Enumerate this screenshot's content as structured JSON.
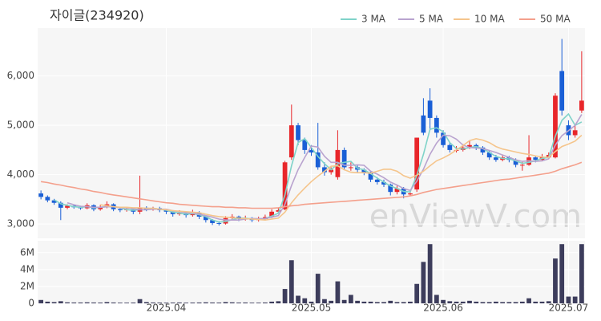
{
  "chart_data": [
    {
      "type": "candlestick",
      "title": "자이글(234920)",
      "watermark": "enViewV.com",
      "up_color": "#e8262a",
      "down_color": "#1a5fd6",
      "open": [
        3620,
        3550,
        3480,
        3430,
        3330,
        3370,
        3340,
        3320,
        3380,
        3300,
        3350,
        3400,
        3300,
        3280,
        3300,
        3250,
        3330,
        3300,
        3320,
        3280,
        3250,
        3200,
        3220,
        3180,
        3230,
        3150,
        3080,
        3020,
        3010,
        3120,
        3150,
        3100,
        3120,
        3080,
        3100,
        3140,
        3250,
        3300,
        4350,
        5000,
        4700,
        4500,
        4450,
        4150,
        4050,
        3950,
        4500,
        4150,
        4150,
        4100,
        4050,
        3900,
        3850,
        3800,
        3650,
        3720,
        3600,
        3700,
        5200,
        5500,
        5150,
        4850,
        4600,
        4500,
        4500,
        4550,
        4600,
        4550,
        4450,
        4350,
        4300,
        4350,
        4300,
        4200,
        4200,
        4350,
        4300,
        4350,
        4350,
        6100,
        5000,
        4800,
        5300
      ],
      "high": [
        3680,
        3580,
        3510,
        3460,
        3400,
        3400,
        3370,
        3420,
        3400,
        3390,
        3460,
        3420,
        3330,
        3340,
        3320,
        3980,
        3360,
        3350,
        3350,
        3300,
        3270,
        3280,
        3250,
        3290,
        3260,
        3170,
        3100,
        3060,
        3160,
        3200,
        3170,
        3170,
        3140,
        3150,
        3190,
        3300,
        3330,
        4280,
        5420,
        5050,
        4750,
        4600,
        5050,
        4250,
        4150,
        4900,
        4550,
        4250,
        4200,
        4130,
        4080,
        3950,
        3900,
        3820,
        3780,
        3750,
        3680,
        4750,
        5550,
        5750,
        5200,
        4900,
        4650,
        4580,
        4620,
        4680,
        4630,
        4580,
        4480,
        4400,
        4400,
        4380,
        4330,
        4260,
        4800,
        4380,
        4420,
        4450,
        5650,
        6750,
        5100,
        5000,
        6500
      ],
      "low": [
        3500,
        3440,
        3390,
        3080,
        3300,
        3310,
        3290,
        3300,
        3260,
        3270,
        3320,
        3260,
        3240,
        3250,
        3200,
        3200,
        3260,
        3270,
        3240,
        3200,
        3150,
        3170,
        3130,
        3150,
        3100,
        3030,
        2980,
        2970,
        2990,
        3090,
        3060,
        3070,
        3040,
        3050,
        3070,
        3120,
        3210,
        3280,
        4300,
        4600,
        4420,
        4380,
        4100,
        3980,
        4000,
        3900,
        4100,
        4080,
        4050,
        3990,
        3850,
        3800,
        3750,
        3580,
        3600,
        3520,
        3570,
        3650,
        4800,
        4900,
        4750,
        4550,
        4450,
        4450,
        4470,
        4520,
        4500,
        4400,
        4300,
        4260,
        4270,
        4250,
        4150,
        4080,
        4180,
        4250,
        4270,
        4320,
        4330,
        5200,
        4700,
        4750,
        5250
      ],
      "close": [
        3550,
        3480,
        3430,
        3330,
        3370,
        3340,
        3320,
        3380,
        3300,
        3350,
        3400,
        3300,
        3280,
        3300,
        3250,
        3330,
        3300,
        3320,
        3280,
        3250,
        3200,
        3220,
        3180,
        3230,
        3150,
        3080,
        3020,
        3010,
        3120,
        3150,
        3100,
        3120,
        3080,
        3100,
        3140,
        3250,
        3280,
        4250,
        5000,
        4700,
        4500,
        4450,
        4150,
        4050,
        4100,
        4500,
        4150,
        4150,
        4100,
        4050,
        3900,
        3850,
        3800,
        3650,
        3720,
        3600,
        3620,
        4750,
        4850,
        5150,
        4850,
        4600,
        4500,
        4500,
        4550,
        4600,
        4550,
        4450,
        4350,
        4300,
        4350,
        4300,
        4200,
        4200,
        4350,
        4300,
        4350,
        4400,
        5600,
        5300,
        4800,
        4900,
        5500
      ],
      "series": [
        {
          "name": "3 MA",
          "color": "#7fd3c9",
          "values": [
            null,
            null,
            3490,
            3410,
            3380,
            3350,
            3340,
            3350,
            3330,
            3340,
            3350,
            3350,
            3330,
            3290,
            3280,
            3290,
            3290,
            3320,
            3300,
            3280,
            3240,
            3220,
            3200,
            3210,
            3190,
            3150,
            3080,
            3040,
            3050,
            3090,
            3120,
            3120,
            3100,
            3100,
            3110,
            3160,
            3220,
            3590,
            4180,
            4650,
            4730,
            4550,
            4370,
            4220,
            4100,
            4220,
            4250,
            4270,
            4130,
            4100,
            4020,
            3930,
            3850,
            3770,
            3720,
            3660,
            3650,
            3990,
            4410,
            4920,
            4950,
            4870,
            4650,
            4530,
            4520,
            4550,
            4570,
            4530,
            4450,
            4370,
            4330,
            4320,
            4280,
            4230,
            4250,
            4280,
            4330,
            4350,
            4780,
            5100,
            5230,
            5000,
            5070
          ]
        },
        {
          "name": "5 MA",
          "color": "#b9a3cf",
          "values": [
            null,
            null,
            null,
            null,
            3430,
            3390,
            3360,
            3350,
            3340,
            3340,
            3350,
            3350,
            3330,
            3330,
            3310,
            3290,
            3290,
            3300,
            3300,
            3300,
            3270,
            3250,
            3230,
            3220,
            3200,
            3170,
            3140,
            3100,
            3080,
            3080,
            3080,
            3100,
            3110,
            3110,
            3110,
            3140,
            3170,
            3400,
            3780,
            4100,
            4350,
            4580,
            4560,
            4370,
            4250,
            4250,
            4190,
            4190,
            4200,
            4190,
            4070,
            4010,
            3940,
            3850,
            3790,
            3720,
            3680,
            3870,
            4110,
            4410,
            4640,
            4800,
            4790,
            4720,
            4600,
            4550,
            4540,
            4530,
            4490,
            4450,
            4400,
            4350,
            4300,
            4270,
            4280,
            4270,
            4280,
            4320,
            4600,
            4790,
            4890,
            5000,
            5220
          ]
        },
        {
          "name": "10 MA",
          "color": "#f5c58c",
          "values": [
            null,
            null,
            null,
            null,
            null,
            null,
            null,
            null,
            null,
            3390,
            3370,
            3350,
            3340,
            3340,
            3330,
            3330,
            3320,
            3320,
            3300,
            3290,
            3270,
            3260,
            3250,
            3240,
            3230,
            3200,
            3170,
            3150,
            3140,
            3130,
            3120,
            3110,
            3100,
            3090,
            3080,
            3100,
            3120,
            3240,
            3430,
            3590,
            3730,
            3860,
            3970,
            4070,
            4170,
            4180,
            4100,
            4050,
            4040,
            4040,
            4030,
            4070,
            4110,
            4110,
            4070,
            3980,
            3930,
            3990,
            4070,
            4180,
            4280,
            4340,
            4410,
            4500,
            4590,
            4690,
            4730,
            4700,
            4650,
            4570,
            4520,
            4490,
            4460,
            4430,
            4410,
            4380,
            4360,
            4350,
            4470,
            4570,
            4620,
            4680,
            4800
          ]
        },
        {
          "name": "50 MA",
          "color": "#f4a08c",
          "values": [
            3860,
            3840,
            3810,
            3790,
            3760,
            3740,
            3710,
            3690,
            3660,
            3640,
            3610,
            3590,
            3570,
            3550,
            3530,
            3510,
            3490,
            3470,
            3450,
            3430,
            3420,
            3400,
            3390,
            3380,
            3370,
            3360,
            3350,
            3350,
            3340,
            3340,
            3330,
            3330,
            3320,
            3320,
            3320,
            3320,
            3330,
            3350,
            3370,
            3380,
            3400,
            3410,
            3420,
            3430,
            3440,
            3450,
            3460,
            3470,
            3480,
            3490,
            3500,
            3510,
            3520,
            3530,
            3540,
            3550,
            3570,
            3600,
            3640,
            3670,
            3700,
            3720,
            3740,
            3760,
            3780,
            3800,
            3820,
            3840,
            3860,
            3880,
            3900,
            3910,
            3930,
            3950,
            3970,
            3990,
            4010,
            4030,
            4070,
            4120,
            4160,
            4200,
            4250
          ]
        }
      ],
      "ylim": [
        2710,
        6970
      ],
      "yticks": [
        {
          "value": 3000,
          "label": "3,000"
        },
        {
          "value": 4000,
          "label": "4,000"
        },
        {
          "value": 5000,
          "label": "5,000"
        },
        {
          "value": 6000,
          "label": "6,000"
        }
      ],
      "grid": true
    },
    {
      "type": "bar",
      "color": "#3d3d5c",
      "categories": [
        null,
        null,
        null,
        null,
        null,
        null,
        null,
        null,
        null,
        null,
        null,
        null,
        null,
        null,
        null,
        null,
        null,
        null,
        null,
        "2025.04",
        null,
        null,
        null,
        null,
        null,
        null,
        null,
        null,
        null,
        null,
        null,
        null,
        null,
        null,
        null,
        null,
        null,
        null,
        null,
        null,
        null,
        "2025.05",
        null,
        null,
        null,
        null,
        null,
        null,
        null,
        null,
        null,
        null,
        null,
        null,
        null,
        null,
        null,
        null,
        null,
        null,
        null,
        "2025.06",
        null,
        null,
        null,
        null,
        null,
        null,
        null,
        null,
        null,
        null,
        null,
        null,
        null,
        null,
        null,
        null,
        null,
        null,
        "2025.07",
        null,
        null
      ],
      "values": [
        400000,
        200000,
        150000,
        250000,
        120000,
        100000,
        100000,
        120000,
        100000,
        90000,
        150000,
        100000,
        80000,
        80000,
        90000,
        500000,
        150000,
        100000,
        90000,
        80000,
        90000,
        100000,
        80000,
        90000,
        100000,
        120000,
        100000,
        90000,
        150000,
        120000,
        90000,
        100000,
        80000,
        80000,
        100000,
        200000,
        250000,
        1700000,
        5100000,
        900000,
        600000,
        200000,
        3500000,
        500000,
        300000,
        2600000,
        400000,
        1000000,
        300000,
        200000,
        200000,
        150000,
        150000,
        300000,
        150000,
        150000,
        200000,
        2300000,
        4900000,
        7000000,
        1000000,
        400000,
        250000,
        200000,
        200000,
        300000,
        200000,
        150000,
        150000,
        200000,
        150000,
        150000,
        150000,
        200000,
        600000,
        200000,
        200000,
        250000,
        5300000,
        7000000,
        800000,
        800000,
        7000000
      ],
      "ylim": [
        0,
        7400000
      ],
      "yticks": [
        0,
        {
          "value": 2000000,
          "label": "2M"
        },
        {
          "value": 4000000,
          "label": "4M"
        },
        {
          "value": 6000000,
          "label": "6M"
        }
      ],
      "grid": true
    }
  ]
}
